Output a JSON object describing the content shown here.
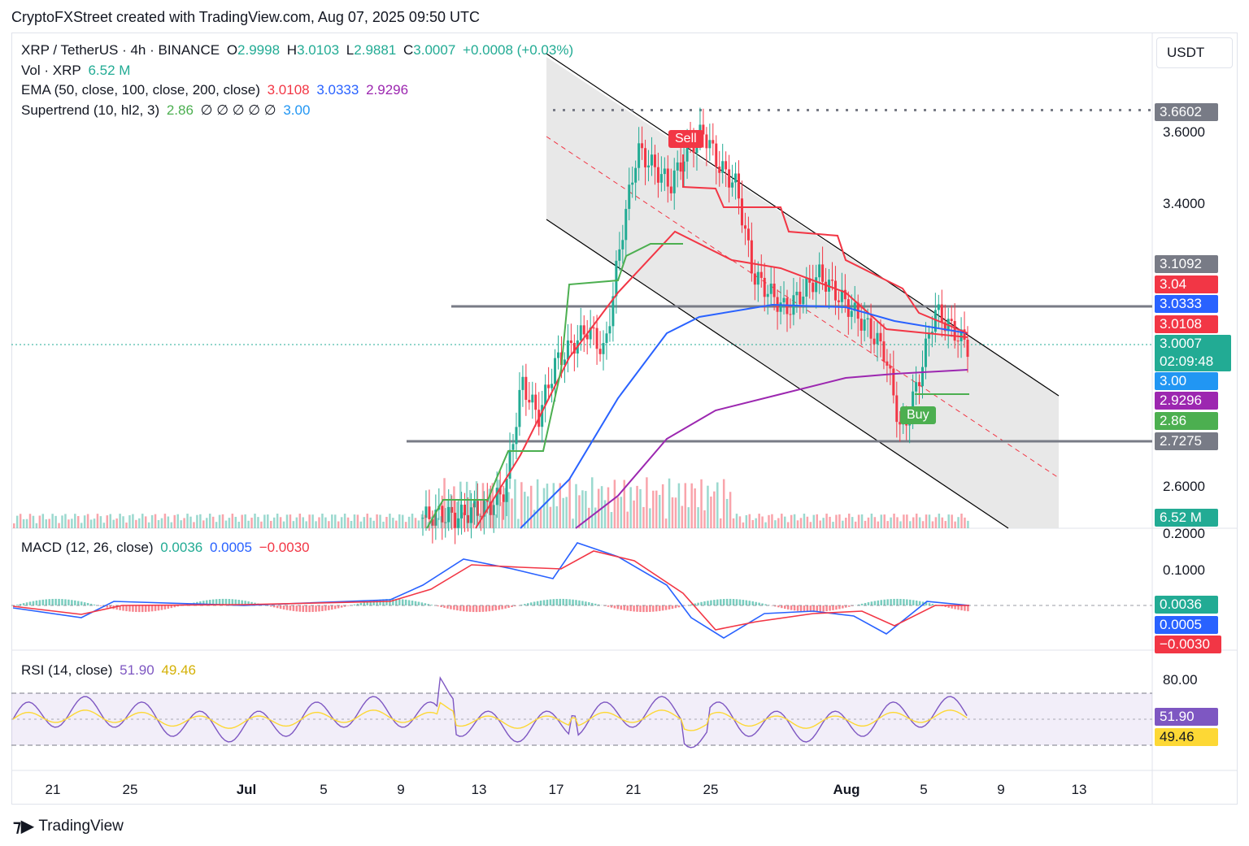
{
  "header": {
    "title": "CryptoFXStreet created with TradingView.com, Aug 07, 2025 09:50 UTC"
  },
  "legend": {
    "symbol": "XRP / TetherUS · 4h · BINANCE",
    "o_label": "O",
    "o": "2.9998",
    "h_label": "H",
    "h": "3.0103",
    "l_label": "L",
    "l": "2.9881",
    "c_label": "C",
    "c": "3.0007",
    "change": "+0.0008 (+0.03%)",
    "vol_label": "Vol · XRP",
    "vol": "6.52 M",
    "ema_label": "EMA (50, close, 100, close, 200, close)",
    "ema50": "3.0108",
    "ema100": "3.0333",
    "ema200": "2.9296",
    "st_label": "Supertrend (10, hl2, 3)",
    "st_up": "2.86",
    "st_empty": "∅ ∅ ∅ ∅ ∅",
    "st_down": "3.00",
    "macd_label": "MACD (12, 26, close)",
    "macd_hist": "0.0036",
    "macd_line": "0.0005",
    "macd_signal": "−0.0030",
    "rsi_label": "RSI (14, close)",
    "rsi": "51.90",
    "rsi_ma": "49.46"
  },
  "currency_button": "USDT",
  "price_axis": {
    "ticks": [
      "3.6000",
      "3.4000",
      "2.6000"
    ],
    "tags": [
      {
        "text": "3.6602",
        "color": "#787b86"
      },
      {
        "text": "3.1092",
        "color": "#787b86"
      },
      {
        "text": "3.04",
        "color": "#f23645"
      },
      {
        "text": "3.0333",
        "color": "#2962ff"
      },
      {
        "text": "3.0108",
        "color": "#f23645"
      },
      {
        "text": "3.0007",
        "color": "#22ab94"
      },
      {
        "text": "02:09:48",
        "color": "#22ab94"
      },
      {
        "text": "3.00",
        "color": "#2196f3"
      },
      {
        "text": "2.9296",
        "color": "#9c27b0"
      },
      {
        "text": "2.86",
        "color": "#4caf50"
      },
      {
        "text": "2.7275",
        "color": "#787b86"
      },
      {
        "text": "6.52 M",
        "color": "#22ab94"
      }
    ]
  },
  "macd_axis": {
    "ticks": [
      "0.2000",
      "0.1000"
    ],
    "tags": [
      {
        "text": "0.0036",
        "color": "#22ab94"
      },
      {
        "text": "0.0005",
        "color": "#2962ff"
      },
      {
        "text": "−0.0030",
        "color": "#f23645"
      }
    ]
  },
  "rsi_axis": {
    "ticks": [
      "80.00"
    ],
    "tags": [
      {
        "text": "51.90",
        "color": "#7e57c2"
      },
      {
        "text": "49.46",
        "color": "#fdd835"
      }
    ]
  },
  "signals": {
    "sell": "Sell",
    "buy": "Buy"
  },
  "time_axis": [
    "21",
    "25",
    "Jul",
    "5",
    "9",
    "13",
    "17",
    "21",
    "25",
    "Aug",
    "5",
    "9",
    "13"
  ],
  "brand": "TradingView",
  "colors": {
    "up": "#22ab94",
    "down": "#f23645",
    "ema50": "#f23645",
    "ema100": "#2962ff",
    "ema200": "#9c27b0",
    "st_up": "#4caf50",
    "st_down": "#f23645",
    "channel": "#d9d9d9",
    "rsi": "#7e57c2",
    "rsi_ma": "#fdd835"
  },
  "chart_data": {
    "type": "candlestick",
    "title": "XRP / TetherUS · 4h · BINANCE",
    "x_ticks": [
      "21",
      "25",
      "Jul",
      "5",
      "9",
      "13",
      "17",
      "21",
      "25",
      "Aug",
      "5",
      "9",
      "13"
    ],
    "price_range": [
      2.52,
      3.78
    ],
    "horizontal_levels": [
      3.6602,
      3.1092,
      2.7275
    ],
    "last_price": 3.0007,
    "approx_closes": [
      2.52,
      2.53,
      2.52,
      2.54,
      2.55,
      2.6,
      2.9,
      2.8,
      2.95,
      3.0,
      3.05,
      2.98,
      3.3,
      3.55,
      3.5,
      3.45,
      3.55,
      3.6,
      3.5,
      3.45,
      3.2,
      3.15,
      3.1,
      3.15,
      3.2,
      3.15,
      3.1,
      3.05,
      2.98,
      2.75,
      2.9,
      3.1,
      3.05,
      3.0
    ],
    "signals": [
      {
        "type": "Sell",
        "price": 3.58
      },
      {
        "type": "Buy",
        "price": 2.86
      }
    ]
  }
}
